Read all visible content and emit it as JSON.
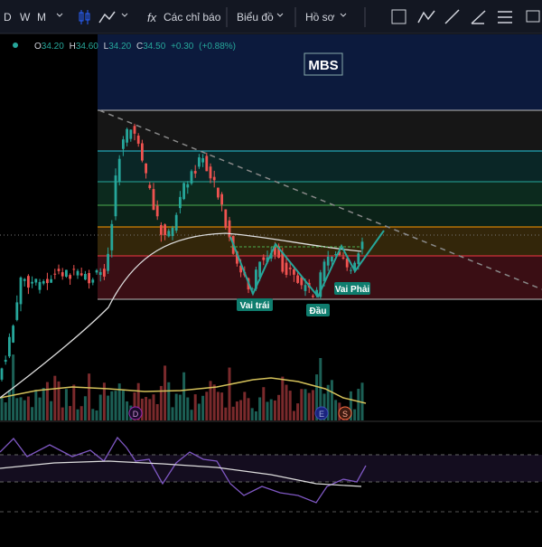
{
  "toolbar": {
    "intervals": [
      "D",
      "W",
      "M"
    ],
    "indicators": "Các chỉ báo",
    "chart": "Biểu đồ",
    "profile": "Hồ sơ"
  },
  "legend": {
    "o_label": "O",
    "o": "34.20",
    "h_label": "H",
    "h": "34.60",
    "l_label": "L",
    "l": "34.20",
    "c_label": "C",
    "c": "34.50",
    "change": "+0.30",
    "change_pct": "(+0.88%)"
  },
  "symbol": "MBS",
  "pattern": {
    "left_shoulder": "Vai trái",
    "head": "Đầu",
    "right_shoulder": "Vai Phải"
  },
  "events": [
    "D",
    "E",
    "S"
  ]
}
